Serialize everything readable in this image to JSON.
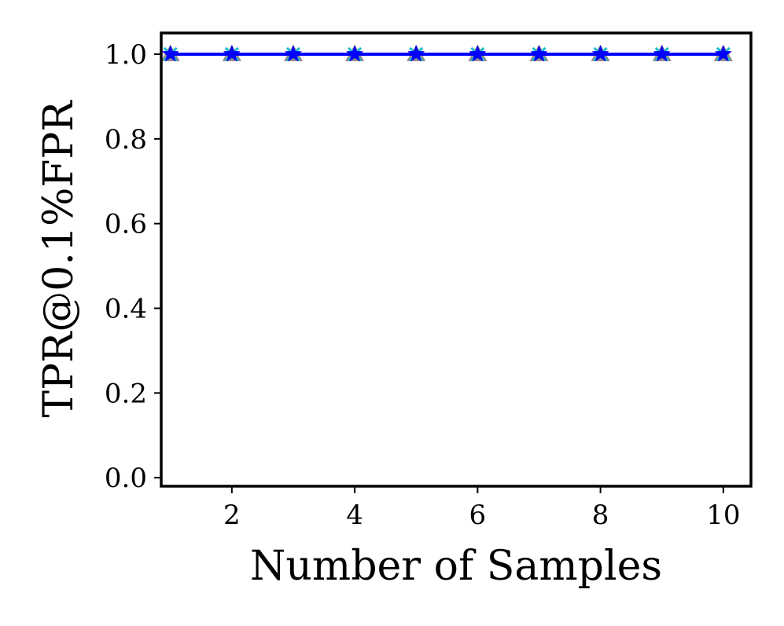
{
  "chart_data": {
    "type": "line",
    "title": "",
    "xlabel": "Number of Samples",
    "ylabel": "TPR@0.1%FPR",
    "xlim": [
      0.85,
      10.45
    ],
    "ylim": [
      -0.02,
      1.05
    ],
    "xticks": [
      2,
      4,
      6,
      8,
      10
    ],
    "yticks": [
      0.0,
      0.2,
      0.4,
      0.6,
      0.8,
      1.0
    ],
    "xtick_labels": [
      "2",
      "4",
      "6",
      "8",
      "10"
    ],
    "ytick_labels": [
      "0.0",
      "0.2",
      "0.4",
      "0.6",
      "0.8",
      "1.0"
    ],
    "grid": false,
    "legend": "none",
    "x": [
      1,
      2,
      3,
      4,
      5,
      6,
      7,
      8,
      9,
      10
    ],
    "series": [
      {
        "color": "#d62728",
        "marker": "triangle",
        "values": [
          1,
          1,
          1,
          1,
          1,
          1,
          1,
          1,
          1,
          1
        ]
      },
      {
        "color": "#8c8c8c",
        "marker": "triangle",
        "values": [
          1,
          1,
          1,
          1,
          1,
          1,
          1,
          1,
          1,
          1
        ]
      },
      {
        "color": "#17becf",
        "marker": "x",
        "values": [
          1,
          1,
          1,
          1,
          1,
          1,
          1,
          1,
          1,
          1
        ]
      },
      {
        "color": "#0000ff",
        "marker": "star",
        "values": [
          1,
          1,
          1,
          1,
          1,
          1,
          1,
          1,
          1,
          1
        ]
      }
    ]
  }
}
